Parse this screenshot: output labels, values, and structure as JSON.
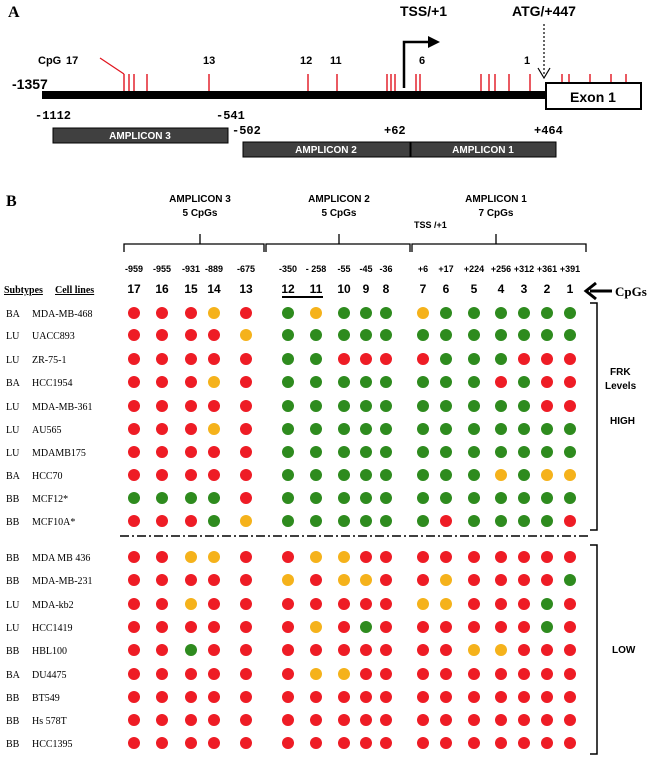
{
  "panel_a": {
    "label": "A",
    "tss_label": "TSS/+1",
    "atg_label": "ATG/+447",
    "start_pos": "-1357",
    "cpg_label": "CpG",
    "cpg_numbers": [
      "17",
      "13",
      "12",
      "11",
      "6",
      "1"
    ],
    "exon_label": "Exon 1",
    "amplicons": [
      {
        "name": "AMPLICON 3",
        "start": "-1112",
        "end": "-541"
      },
      {
        "name": "AMPLICON 2",
        "start": "-502",
        "end": "+62"
      },
      {
        "name": "AMPLICON 1",
        "start": "",
        "end": "+464"
      }
    ]
  },
  "panel_b": {
    "label": "B",
    "amplicon_headers": [
      {
        "name": "AMPLICON 3",
        "cpgs": "5 CpGs"
      },
      {
        "name": "AMPLICON 2",
        "cpgs": "5 CpGs"
      },
      {
        "name": "AMPLICON 1",
        "cpgs": "7 CpGs"
      }
    ],
    "tss_note": "TSS /+1",
    "positions": [
      "-959",
      "-955",
      "-931",
      "-889",
      "-675",
      "-350",
      "- 258",
      "-55",
      "-45",
      "-36",
      "+6",
      "+17",
      "+224",
      "+256",
      "+312",
      "+361",
      "+391"
    ],
    "cpg_numbers": [
      "17",
      "16",
      "15",
      "14",
      "13",
      "12",
      "11",
      "10",
      "9",
      "8",
      "7",
      "6",
      "5",
      "4",
      "3",
      "2",
      "1"
    ],
    "cpgs_arrow_label": "CpGs",
    "subtypes_header": "Subtypes",
    "cell_lines_header": "Cell lines",
    "frk_label": "FRK Levels",
    "high_label": "HIGH",
    "low_label": "LOW",
    "colors": {
      "red": "#ee1c25",
      "green": "#2e8b1e",
      "orange": "#f5b21b"
    },
    "rows": [
      {
        "subtype": "BA",
        "cell_line": "MDA-MB-468",
        "dots": "RRRORGOGGGOGGGGGG"
      },
      {
        "subtype": "LU",
        "cell_line": "UACC893",
        "dots": "RRRROGGGGGGGGGGGG"
      },
      {
        "subtype": "LU",
        "cell_line": "ZR-75-1",
        "dots": "RRRRRGGRRRRGGGRRR"
      },
      {
        "subtype": "BA",
        "cell_line": "HCC1954",
        "dots": "RRRORGGGGGGGGRGRR"
      },
      {
        "subtype": "LU",
        "cell_line": "MDA-MB-361",
        "dots": "RRRRRGGGGGGGGGGRR"
      },
      {
        "subtype": "LU",
        "cell_line": "AU565",
        "dots": "RRRORGGGGGGGGGGGG"
      },
      {
        "subtype": "LU",
        "cell_line": "MDAMB175",
        "dots": "RRRRRGGGGGGGGGGGG"
      },
      {
        "subtype": "BA",
        "cell_line": "HCC70",
        "dots": "RRRRRGGGGGGGGOGOO"
      },
      {
        "subtype": "BB",
        "cell_line": "MCF12*",
        "dots": "GGGGRGGGGGGGGGGGG"
      },
      {
        "subtype": "BB",
        "cell_line": "MCF10A*",
        "dots": "RRRGOGGGGGGRGGGGR"
      },
      {
        "subtype": "BB",
        "cell_line": "MDA MB 436",
        "dots": "RROORROORRRRRRRRR"
      },
      {
        "subtype": "BB",
        "cell_line": "MDA-MB-231",
        "dots": "RRRRROROORRORRRRG"
      },
      {
        "subtype": "LU",
        "cell_line": "MDA-kb2",
        "dots": "RRORRRRRRROORRRGR"
      },
      {
        "subtype": "LU",
        "cell_line": "HCC1419",
        "dots": "RRRRRRORGRRRRRRGR"
      },
      {
        "subtype": "BB",
        "cell_line": "HBL100",
        "dots": "RRGRRRRRRRRROORRR"
      },
      {
        "subtype": "BA",
        "cell_line": "DU4475",
        "dots": "RRRRRROORRRRRRRRR"
      },
      {
        "subtype": "BB",
        "cell_line": "BT549",
        "dots": "RRRRRRRRRRRRRRRRR"
      },
      {
        "subtype": "BB",
        "cell_line": "Hs 578T",
        "dots": "RRRRRRRRRRRRRRRRR"
      },
      {
        "subtype": "BB",
        "cell_line": "HCC1395",
        "dots": "RRRRRRRRRRRRRRRRR"
      }
    ]
  }
}
